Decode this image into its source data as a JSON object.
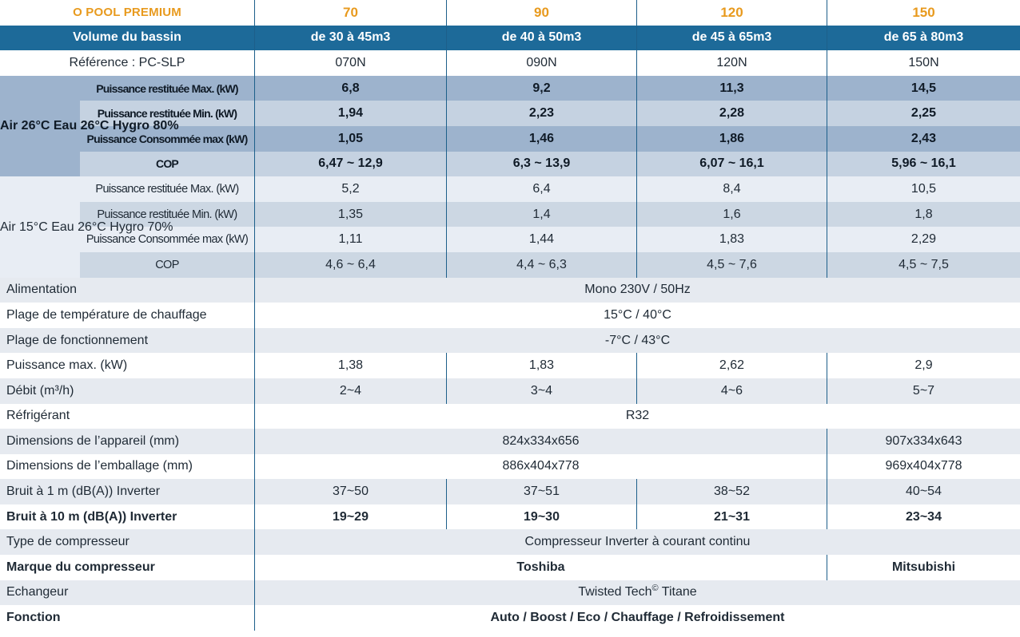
{
  "header": {
    "title": "O POOL PREMIUM",
    "models": [
      "70",
      "90",
      "120",
      "150"
    ],
    "volume_label": "Volume du bassin",
    "volumes": [
      "de 30 à 45m3",
      "de 40 à 50m3",
      "de 45 à 65m3",
      "de 65 à 80m3"
    ],
    "reference_label": "Référence : PC-SLP",
    "references": [
      "070N",
      "090N",
      "120N",
      "150N"
    ]
  },
  "condition_a": {
    "label": "Air 26°C Eau 26°C Hygro 80%",
    "rows": [
      {
        "label": "Puissance restituée Max. (kW)",
        "values": [
          "6,8",
          "9,2",
          "11,3",
          "14,5"
        ]
      },
      {
        "label": "Puissance restituée Min. (kW)",
        "values": [
          "1,94",
          "2,23",
          "2,28",
          "2,25"
        ]
      },
      {
        "label": "Puissance Consommée max (kW)",
        "values": [
          "1,05",
          "1,46",
          "1,86",
          "2,43"
        ]
      },
      {
        "label": "COP",
        "values": [
          "6,47 ~ 12,9",
          "6,3 ~ 13,9",
          "6,07 ~ 16,1",
          "5,96 ~ 16,1"
        ]
      }
    ]
  },
  "condition_b": {
    "label": "Air 15°C Eau 26°C Hygro 70%",
    "rows": [
      {
        "label": "Puissance restituée Max. (kW)",
        "values": [
          "5,2",
          "6,4",
          "8,4",
          "10,5"
        ]
      },
      {
        "label": "Puissance restituée Min. (kW)",
        "values": [
          "1,35",
          "1,4",
          "1,6",
          "1,8"
        ]
      },
      {
        "label": "Puissance Consommée max (kW)",
        "values": [
          "1,11",
          "1,44",
          "1,83",
          "2,29"
        ]
      },
      {
        "label": "COP",
        "values": [
          "4,6 ~ 6,4",
          "4,4 ~ 6,3",
          "4,5 ~ 7,6",
          "4,5 ~ 7,5"
        ]
      }
    ]
  },
  "general": {
    "alimentation": {
      "label": "Alimentation",
      "value": "Mono 230V / 50Hz"
    },
    "plage_chauffage": {
      "label": "Plage de température de chauffage",
      "value": "15°C / 40°C"
    },
    "plage_fonctionnement": {
      "label": "Plage de fonctionnement",
      "value": "-7°C / 43°C"
    },
    "puissance_max": {
      "label": "Puissance max. (kW)",
      "values": [
        "1,38",
        "1,83",
        "2,62",
        "2,9"
      ]
    },
    "debit": {
      "label": "Débit (m³/h)",
      "values": [
        "2~4",
        "3~4",
        "4~6",
        "5~7"
      ]
    },
    "refrigerant": {
      "label": "Réfrigérant",
      "value": "R32"
    },
    "dim_appareil": {
      "label": "Dimensions de l’appareil (mm)",
      "value_70_120": "824x334x656",
      "value_150": "907x334x643"
    },
    "dim_emballage": {
      "label": "Dimensions de l’emballage (mm)",
      "value_70_120": "886x404x778",
      "value_150": "969x404x778"
    },
    "bruit_1m": {
      "label": "Bruit à 1 m (dB(A)) Inverter",
      "values": [
        "37~50",
        "37~51",
        "38~52",
        "40~54"
      ]
    },
    "bruit_10m": {
      "label": "Bruit à 10 m (dB(A)) Inverter",
      "values": [
        "19~29",
        "19~30",
        "21~31",
        "23~34"
      ]
    },
    "type_compresseur": {
      "label": "Type de compresseur",
      "value": "Compresseur Inverter à courant continu"
    },
    "marque_compresseur": {
      "label": "Marque du compresseur",
      "value_70_120": "Toshiba",
      "value_150": "Mitsubishi"
    },
    "echangeur": {
      "label": "Echangeur",
      "value_main": "Twisted Tech",
      "value_mark": "©",
      "value_tail": " Titane"
    },
    "fonction": {
      "label": "Fonction",
      "value": "Auto / Boost / Eco / Chauffage / Refroidissement"
    }
  },
  "colors": {
    "header_blue": "#1d6a99",
    "title_orange": "#e89a1e",
    "group_a_dark": "#9db3cd",
    "group_a_light": "#c5d2e1",
    "group_b_light": "#e8edf4",
    "group_b_dark": "#ccd7e3",
    "row_grey": "#e6eaf0"
  }
}
